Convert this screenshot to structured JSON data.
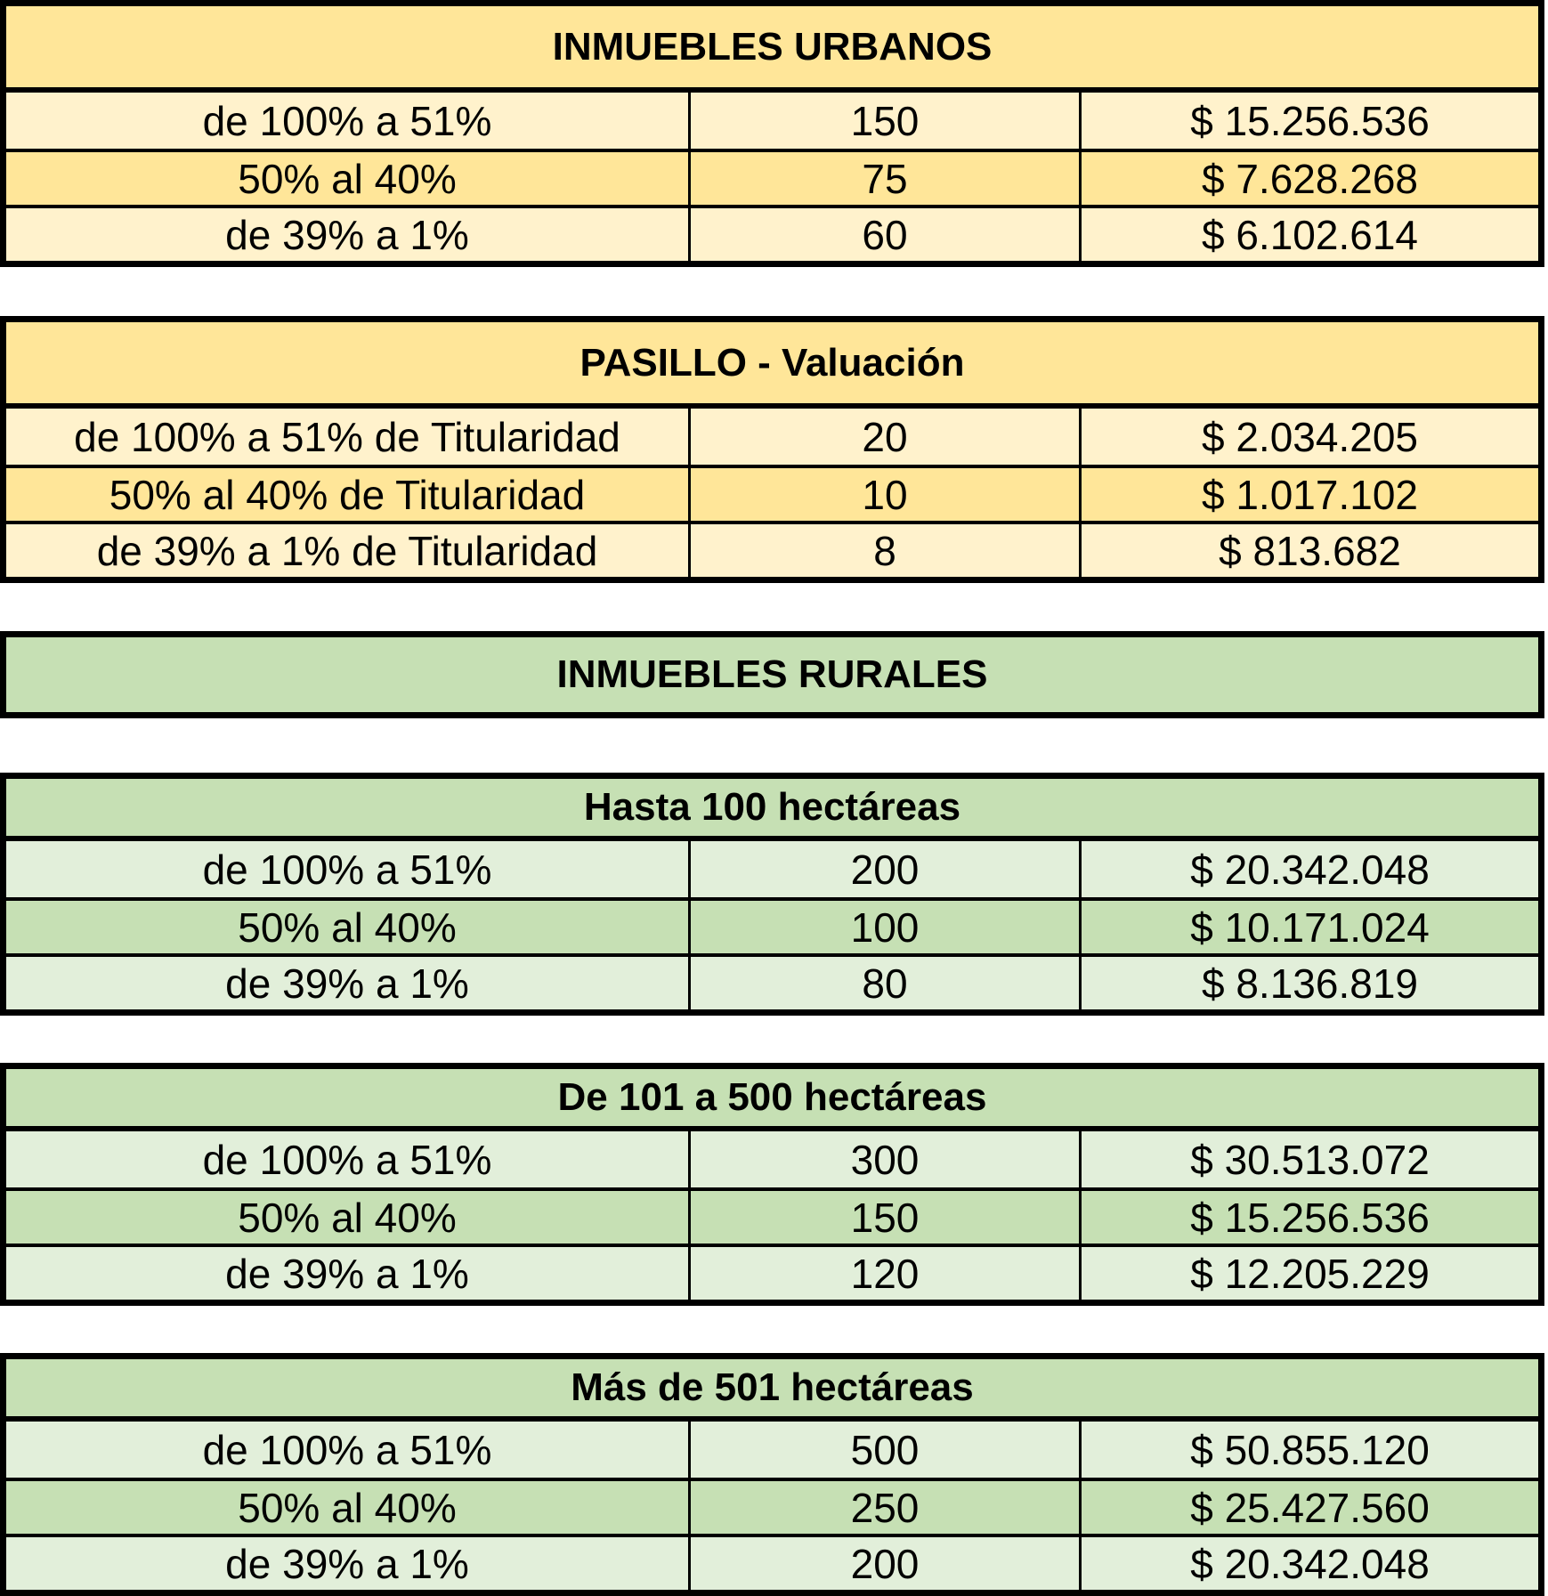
{
  "colors": {
    "urban_header": "#FFE699",
    "urban_light": "#FFF2CC",
    "rural_header": "#C6E0B4",
    "rural_light": "#E2EFDA"
  },
  "tables": [
    {
      "title": "INMUEBLES URBANOS",
      "rows": [
        [
          "de 100% a 51%",
          "150",
          "$ 15.256.536"
        ],
        [
          "50% al 40%",
          "75",
          "$ 7.628.268"
        ],
        [
          "de 39% a 1%",
          "60",
          "$ 6.102.614"
        ]
      ]
    },
    {
      "title": "PASILLO - Valuación",
      "rows": [
        [
          "de 100% a 51% de Titularidad",
          "20",
          "$ 2.034.205"
        ],
        [
          "50% al 40% de Titularidad",
          "10",
          "$ 1.017.102"
        ],
        [
          "de 39% a 1% de Titularidad",
          "8",
          "$ 813.682"
        ]
      ]
    },
    {
      "title": "INMUEBLES RURALES",
      "rows": []
    },
    {
      "title": "Hasta 100 hectáreas",
      "rows": [
        [
          "de 100% a 51%",
          "200",
          "$ 20.342.048"
        ],
        [
          "50% al 40%",
          "100",
          "$ 10.171.024"
        ],
        [
          "de 39% a 1%",
          "80",
          "$ 8.136.819"
        ]
      ]
    },
    {
      "title": "De 101 a 500 hectáreas",
      "rows": [
        [
          "de 100% a 51%",
          "300",
          "$ 30.513.072"
        ],
        [
          "50% al 40%",
          "150",
          "$ 15.256.536"
        ],
        [
          "de 39% a 1%",
          "120",
          "$ 12.205.229"
        ]
      ]
    },
    {
      "title": "Más de 501 hectáreas",
      "rows": [
        [
          "de 100% a 51%",
          "500",
          "$ 50.855.120"
        ],
        [
          "50% al 40%",
          "250",
          "$ 25.427.560"
        ],
        [
          "de 39% a 1%",
          "200",
          "$ 20.342.048"
        ]
      ]
    }
  ]
}
